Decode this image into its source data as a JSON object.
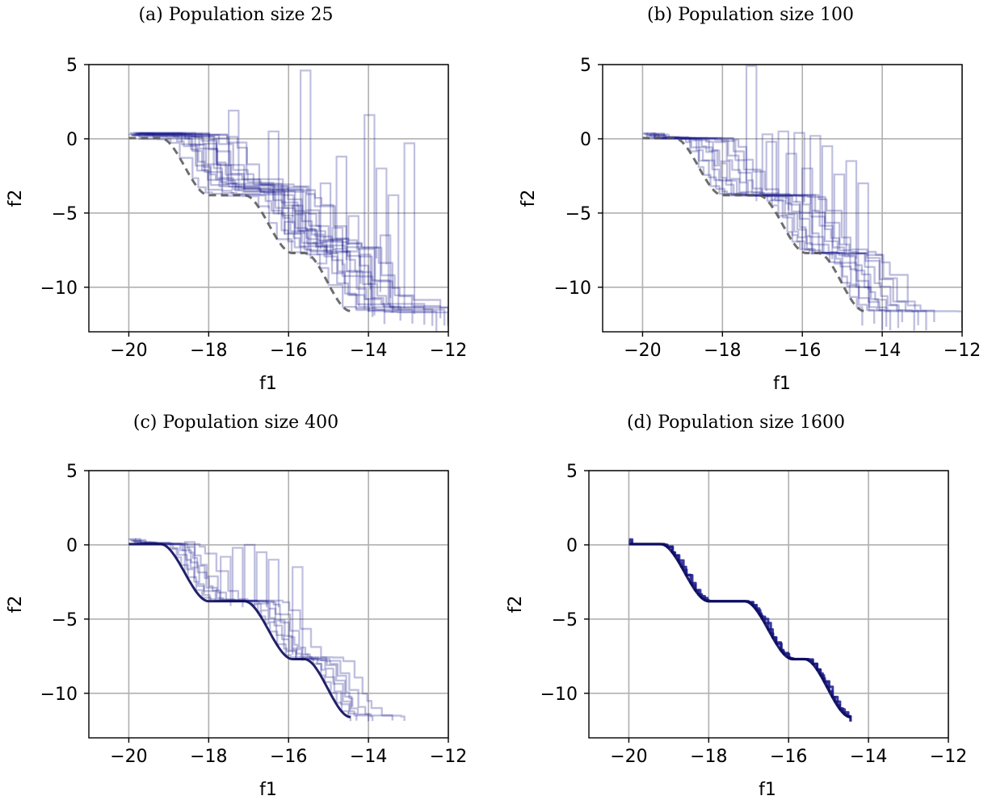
{
  "colors": {
    "run_line": "#1a1a8c",
    "reference_dashed": "#555555",
    "grid": "#b0b0b0",
    "axes": "#000000"
  },
  "shared_axes": {
    "x_ticks": [
      -20,
      -18,
      -16,
      -14,
      -12
    ],
    "x_tick_labels": [
      "−20",
      "−18",
      "−16",
      "−14",
      "−12"
    ],
    "y_ticks": [
      5,
      0,
      -5,
      -10
    ],
    "y_tick_labels": [
      "5",
      "0",
      "−5",
      "−10"
    ]
  },
  "chart_data": [
    {
      "type": "line",
      "title": "(a) Population size 25",
      "xlabel": "f1",
      "ylabel": "f2",
      "xlim": [
        -21,
        -12
      ],
      "ylim": [
        -13,
        5
      ],
      "grid": true,
      "pareto_front": {
        "f1_min": -20,
        "f1_max": -14.45
      },
      "reference_dashed": true,
      "runs": [
        {
          "shift": 0.0,
          "rise": 0.0,
          "end": -12.0,
          "stair": 0.25,
          "dy": 0.9,
          "spike": [
            -15.7,
            4.6
          ]
        },
        {
          "shift": 0.4,
          "rise": 0.5,
          "end": -12.3,
          "stair": 0.3,
          "dy": 1.0,
          "spike": [
            -14.1,
            1.6
          ]
        },
        {
          "shift": 0.8,
          "rise": 0.9,
          "end": -12.1,
          "stair": 0.25,
          "dy": 0.7,
          "spike": [
            -17.5,
            1.9
          ]
        },
        {
          "shift": 1.1,
          "rise": 1.3,
          "end": -12.0,
          "stair": 0.3,
          "dy": 0.8,
          "spike": [
            -13.1,
            -0.3
          ]
        },
        {
          "shift": 0.2,
          "rise": 0.8,
          "end": -12.9,
          "stair": 0.25,
          "dy": 0.9,
          "spike": [
            -16.5,
            0.5
          ]
        },
        {
          "shift": 0.6,
          "rise": 1.6,
          "end": -12.4,
          "stair": 0.35,
          "dy": 1.1,
          "spike": [
            -14.8,
            -1.2
          ]
        },
        {
          "shift": 1.5,
          "rise": 2.0,
          "end": -12.0,
          "stair": 0.3,
          "dy": 0.6,
          "spike": [
            -13.8,
            -2.0
          ]
        },
        {
          "shift": 0.3,
          "rise": 2.4,
          "end": -13.2,
          "stair": 0.25,
          "dy": 0.9,
          "spike": [
            -15.2,
            -3.0
          ]
        },
        {
          "shift": 0.9,
          "rise": 2.9,
          "end": -12.6,
          "stair": 0.3,
          "dy": 0.8,
          "spike": [
            -13.5,
            -3.8
          ]
        },
        {
          "shift": 0.5,
          "rise": 3.4,
          "end": -13.6,
          "stair": 0.3,
          "dy": 0.8,
          "spike": [
            -15.9,
            -4.5
          ]
        },
        {
          "shift": 1.3,
          "rise": 3.8,
          "end": -12.2,
          "stair": 0.35,
          "dy": 0.7,
          "spike": [
            -14.5,
            -5.2
          ]
        },
        {
          "shift": 0.1,
          "rise": 4.3,
          "end": -14.0,
          "stair": 0.3,
          "dy": 0.9,
          "spike": [
            -16.1,
            -5.6
          ]
        },
        {
          "shift": 0.7,
          "rise": 4.8,
          "end": -13.9,
          "stair": 0.25,
          "dy": 0.8,
          "spike": [
            -14.9,
            -6.0
          ]
        },
        {
          "shift": 1.0,
          "rise": 5.3,
          "end": -13.4,
          "stair": 0.35,
          "dy": 0.7,
          "spike": [
            -13.7,
            -6.5
          ]
        },
        {
          "shift": 0.4,
          "rise": 5.8,
          "end": -14.6,
          "stair": 0.3,
          "dy": 0.8,
          "spike": [
            -15.4,
            -7.0
          ]
        },
        {
          "shift": 0.6,
          "rise": 6.5,
          "end": -14.9,
          "stair": 0.3,
          "dy": 0.7,
          "spike": [
            -14.2,
            -7.8
          ]
        },
        {
          "shift": 0.2,
          "rise": 7.2,
          "end": -15.5,
          "stair": 0.25,
          "dy": 0.6,
          "spike": [
            -15.3,
            -8.4
          ]
        }
      ]
    },
    {
      "type": "line",
      "title": "(b) Population size 100",
      "xlabel": "f1",
      "ylabel": "f2",
      "xlim": [
        -21,
        -12
      ],
      "ylim": [
        -13,
        5
      ],
      "grid": true,
      "pareto_front": {
        "f1_min": -20,
        "f1_max": -14.45
      },
      "reference_dashed": true,
      "runs": [
        {
          "shift": 0.0,
          "rise": 0.0,
          "end": -14.5,
          "stair": 0.2,
          "dy": 0.3,
          "spike": [
            -17.4,
            4.9
          ]
        },
        {
          "shift": 0.2,
          "rise": 0.0,
          "end": -14.0,
          "stair": 0.2,
          "dy": 0.3,
          "spike": [
            -16.6,
            0.5
          ]
        },
        {
          "shift": 0.5,
          "rise": 0.0,
          "end": -13.5,
          "stair": 0.25,
          "dy": 0.3,
          "spike": [
            -17.0,
            0.3
          ]
        },
        {
          "shift": 0.8,
          "rise": 0.0,
          "end": -13.2,
          "stair": 0.25,
          "dy": 0.3,
          "spike": [
            -16.2,
            0.4
          ]
        },
        {
          "shift": 1.0,
          "rise": 0.0,
          "end": -12.9,
          "stair": 0.25,
          "dy": 0.3,
          "spike": [
            -15.8,
            0.2
          ]
        },
        {
          "shift": 1.3,
          "rise": 0.0,
          "end": -12.7,
          "stair": 0.3,
          "dy": 0.3,
          "spike": [
            -16.9,
            -0.2
          ]
        },
        {
          "shift": 0.3,
          "rise": 0.0,
          "end": -12.0,
          "stair": 0.25,
          "dy": 0.3,
          "spike": [
            -15.5,
            -0.5
          ]
        },
        {
          "shift": 0.6,
          "rise": 0.0,
          "end": -13.8,
          "stair": 0.2,
          "dy": 0.3,
          "spike": [
            -16.4,
            -1.0
          ]
        },
        {
          "shift": 0.9,
          "rise": 0.0,
          "end": -13.6,
          "stair": 0.25,
          "dy": 0.3,
          "spike": [
            -14.9,
            -1.5
          ]
        },
        {
          "shift": 0.1,
          "rise": 0.0,
          "end": -14.2,
          "stair": 0.2,
          "dy": 0.3,
          "spike": [
            -16.0,
            -2.0
          ]
        },
        {
          "shift": 1.1,
          "rise": 0.0,
          "end": -13.1,
          "stair": 0.3,
          "dy": 0.3,
          "spike": [
            -15.2,
            -2.4
          ]
        },
        {
          "shift": 0.4,
          "rise": 0.0,
          "end": -13.9,
          "stair": 0.2,
          "dy": 0.3,
          "spike": [
            -14.6,
            -3.0
          ]
        }
      ]
    },
    {
      "type": "line",
      "title": "(c) Population size 400",
      "xlabel": "f1",
      "ylabel": "f2",
      "xlim": [
        -21,
        -12
      ],
      "ylim": [
        -13,
        5
      ],
      "grid": true,
      "pareto_front": {
        "f1_min": -20,
        "f1_max": -14.45
      },
      "reference_dashed": false,
      "runs": [
        {
          "shift": 0.0,
          "rise": 0.0,
          "end": -14.45,
          "stair": 0.15,
          "dy": 0.2,
          "spike": [
            -18.6,
            0.2
          ]
        },
        {
          "shift": 0.1,
          "rise": 0.0,
          "end": -14.3,
          "stair": 0.15,
          "dy": 0.2,
          "spike": [
            -17.4,
            -0.2
          ]
        },
        {
          "shift": 0.3,
          "rise": 0.0,
          "end": -14.0,
          "stair": 0.2,
          "dy": 0.2,
          "spike": [
            -17.1,
            0.0
          ]
        },
        {
          "shift": 0.5,
          "rise": 0.0,
          "end": -13.9,
          "stair": 0.2,
          "dy": 0.2,
          "spike": [
            -16.8,
            -0.5
          ]
        },
        {
          "shift": 0.8,
          "rise": 0.0,
          "end": -13.4,
          "stair": 0.2,
          "dy": 0.2,
          "spike": [
            -16.5,
            -1.0
          ]
        },
        {
          "shift": 0.2,
          "rise": 0.0,
          "end": -13.1,
          "stair": 0.2,
          "dy": 0.2,
          "spike": [
            -15.9,
            -1.5
          ]
        },
        {
          "shift": 0.4,
          "rise": 0.0,
          "end": -14.4,
          "stair": 0.15,
          "dy": 0.2,
          "spike": [
            -17.7,
            -0.8
          ]
        }
      ]
    },
    {
      "type": "line",
      "title": "(d) Population size 1600",
      "xlabel": "f1",
      "ylabel": "f2",
      "xlim": [
        -21,
        -12
      ],
      "ylim": [
        -13,
        5
      ],
      "grid": true,
      "pareto_front": {
        "f1_min": -20,
        "f1_max": -14.45
      },
      "reference_dashed": false,
      "runs": [
        {
          "shift": 0.0,
          "rise": 0.0,
          "end": -14.45,
          "stair": 0.1,
          "dy": 0.05,
          "spike": [
            -19.2,
            0.3
          ]
        },
        {
          "shift": 0.02,
          "rise": 0.0,
          "end": -14.45,
          "stair": 0.1,
          "dy": 0.05,
          "spike": [
            -19.0,
            0.2
          ]
        }
      ]
    }
  ]
}
